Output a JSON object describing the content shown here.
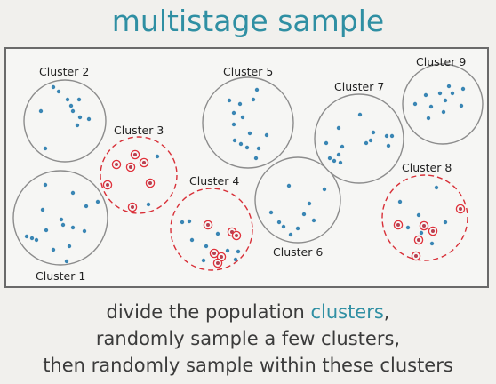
{
  "title": "multistage sample",
  "clusters": [
    {
      "label": "Cluster 1",
      "sampled": false
    },
    {
      "label": "Cluster 2",
      "sampled": false
    },
    {
      "label": "Cluster 3",
      "sampled": true
    },
    {
      "label": "Cluster 4",
      "sampled": true
    },
    {
      "label": "Cluster 5",
      "sampled": false
    },
    {
      "label": "Cluster 6",
      "sampled": false
    },
    {
      "label": "Cluster 7",
      "sampled": false
    },
    {
      "label": "Cluster 8",
      "sampled": true
    },
    {
      "label": "Cluster 9",
      "sampled": false
    }
  ],
  "caption": {
    "line1_prefix": "divide the population ",
    "line1_highlight": "clusters",
    "line1_suffix": ",",
    "line2": "randomly sample a few clusters,",
    "line3": "then randomly sample within these clusters"
  },
  "colors": {
    "title": "#2f8fa3",
    "dot": "#3a86b4",
    "sampled_ring": "#e0323c",
    "cluster_border": "#8c8c8c"
  }
}
